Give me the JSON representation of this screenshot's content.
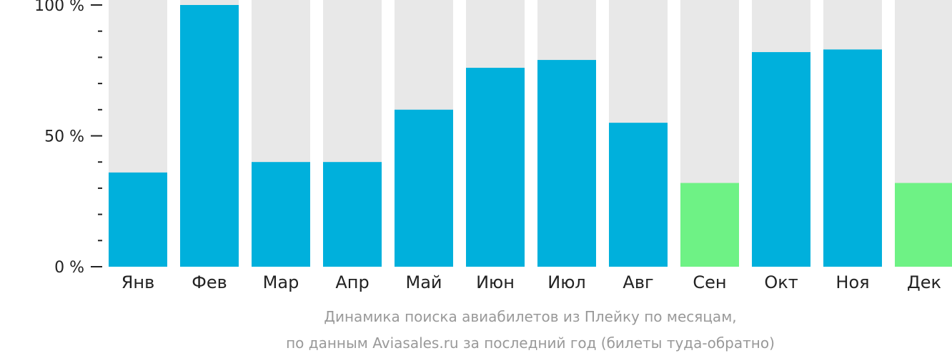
{
  "chart_data": {
    "type": "bar",
    "categories": [
      "Янв",
      "Фев",
      "Мар",
      "Апр",
      "Май",
      "Июн",
      "Июл",
      "Авг",
      "Сен",
      "Окт",
      "Ноя",
      "Дек"
    ],
    "values": [
      36,
      100,
      40,
      40,
      60,
      76,
      79,
      55,
      32,
      82,
      83,
      32
    ],
    "ylim": [
      0,
      100
    ],
    "yticks": [
      {
        "value": 100,
        "label": "100 %"
      },
      {
        "value": 50,
        "label": "50 %"
      },
      {
        "value": 0,
        "label": "0 %"
      }
    ],
    "minor_tick_step": 10,
    "legend": "none",
    "grid": false,
    "colors": {
      "bar": "#00b0dc",
      "low_bar": "#6ef285",
      "track": "#e8e8e8",
      "axis": "#222222"
    },
    "low_months": [
      "Сен",
      "Дек"
    ],
    "caption_line1": "Динамика поиска авиабилетов из Плейку по месяцам,",
    "caption_line2": "по данным Aviasales.ru за последний год (билеты туда-обратно)"
  }
}
